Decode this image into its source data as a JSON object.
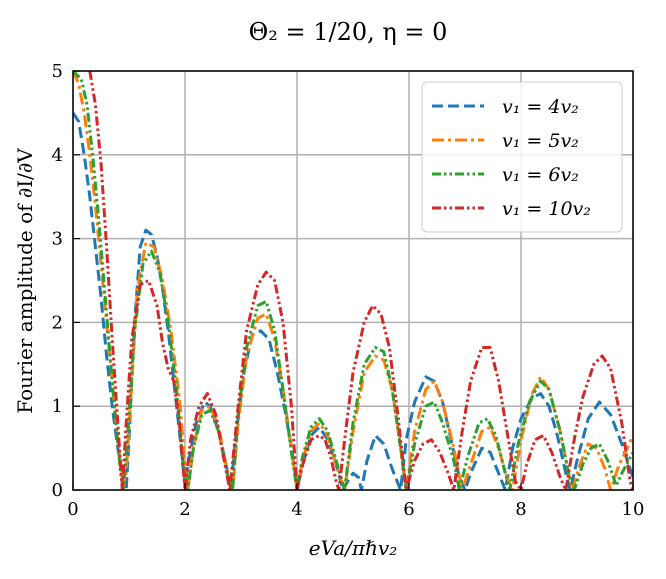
{
  "chart_data": {
    "type": "line",
    "title": "Θ₂ = 1/20, η = 0",
    "xlabel": "eVa/πℏv₂",
    "ylabel": "Fourier amplitude of ∂I/∂V",
    "xlim": [
      0,
      10
    ],
    "ylim": [
      0,
      5
    ],
    "xticks": [
      "0",
      "2",
      "4",
      "6",
      "8",
      "10"
    ],
    "yticks": [
      "0",
      "1",
      "2",
      "3",
      "4",
      "5"
    ],
    "grid": true,
    "legend_position": "top-right",
    "series": [
      {
        "name": "v₁ = 4v₂",
        "color": "#1f77b4",
        "dash": "dashed",
        "points": [
          [
            0,
            4.5
          ],
          [
            0.1,
            4.4
          ],
          [
            0.2,
            4.0
          ],
          [
            0.3,
            3.5
          ],
          [
            0.4,
            2.9
          ],
          [
            0.5,
            2.3
          ],
          [
            0.6,
            1.6
          ],
          [
            0.7,
            1.0
          ],
          [
            0.8,
            0.5
          ],
          [
            0.9,
            0.1
          ],
          [
            0.95,
            0.0
          ],
          [
            1.0,
            0.6
          ],
          [
            1.1,
            2.0
          ],
          [
            1.2,
            2.9
          ],
          [
            1.3,
            3.1
          ],
          [
            1.4,
            3.05
          ],
          [
            1.5,
            2.8
          ],
          [
            1.6,
            2.4
          ],
          [
            1.7,
            1.9
          ],
          [
            1.8,
            1.3
          ],
          [
            1.9,
            0.7
          ],
          [
            2.0,
            0.05
          ],
          [
            2.05,
            0.3
          ],
          [
            2.2,
            0.8
          ],
          [
            2.35,
            1.05
          ],
          [
            2.45,
            1.0
          ],
          [
            2.6,
            0.7
          ],
          [
            2.75,
            0.25
          ],
          [
            2.82,
            0.0
          ],
          [
            2.9,
            0.6
          ],
          [
            3.05,
            1.4
          ],
          [
            3.2,
            1.85
          ],
          [
            3.35,
            1.9
          ],
          [
            3.5,
            1.8
          ],
          [
            3.65,
            1.4
          ],
          [
            3.8,
            0.9
          ],
          [
            3.95,
            0.3
          ],
          [
            4.0,
            0.0
          ],
          [
            4.1,
            0.3
          ],
          [
            4.25,
            0.65
          ],
          [
            4.4,
            0.75
          ],
          [
            4.55,
            0.6
          ],
          [
            4.7,
            0.3
          ],
          [
            4.82,
            0.0
          ],
          [
            4.9,
            0.1
          ],
          [
            5.0,
            0.2
          ],
          [
            5.1,
            0.15
          ],
          [
            5.15,
            0.0
          ],
          [
            5.25,
            0.35
          ],
          [
            5.4,
            0.65
          ],
          [
            5.55,
            0.55
          ],
          [
            5.7,
            0.25
          ],
          [
            5.85,
            0.0
          ],
          [
            5.95,
            0.6
          ],
          [
            6.1,
            1.05
          ],
          [
            6.3,
            1.35
          ],
          [
            6.45,
            1.3
          ],
          [
            6.6,
            1.05
          ],
          [
            6.75,
            0.6
          ],
          [
            6.9,
            0.15
          ],
          [
            7.0,
            0.0
          ],
          [
            7.1,
            0.2
          ],
          [
            7.3,
            0.5
          ],
          [
            7.45,
            0.45
          ],
          [
            7.6,
            0.2
          ],
          [
            7.72,
            0.0
          ],
          [
            7.85,
            0.5
          ],
          [
            8.0,
            0.85
          ],
          [
            8.2,
            1.1
          ],
          [
            8.35,
            1.15
          ],
          [
            8.5,
            1.0
          ],
          [
            8.65,
            0.65
          ],
          [
            8.8,
            0.2
          ],
          [
            8.88,
            0.0
          ],
          [
            9.0,
            0.35
          ],
          [
            9.2,
            0.85
          ],
          [
            9.4,
            1.05
          ],
          [
            9.6,
            0.9
          ],
          [
            9.8,
            0.55
          ],
          [
            10.0,
            0.15
          ]
        ]
      },
      {
        "name": "v₁ = 5v₂",
        "color": "#ff7f0e",
        "dash": "dash-dot",
        "points": [
          [
            0,
            5.0
          ],
          [
            0.1,
            4.85
          ],
          [
            0.2,
            4.5
          ],
          [
            0.3,
            4.0
          ],
          [
            0.4,
            3.4
          ],
          [
            0.5,
            2.7
          ],
          [
            0.6,
            2.0
          ],
          [
            0.7,
            1.3
          ],
          [
            0.8,
            0.6
          ],
          [
            0.9,
            0.05
          ],
          [
            0.95,
            0.2
          ],
          [
            1.05,
            1.3
          ],
          [
            1.15,
            2.4
          ],
          [
            1.3,
            2.95
          ],
          [
            1.45,
            2.9
          ],
          [
            1.6,
            2.5
          ],
          [
            1.75,
            1.9
          ],
          [
            1.9,
            1.1
          ],
          [
            2.0,
            0.3
          ],
          [
            2.05,
            0.0
          ],
          [
            2.15,
            0.5
          ],
          [
            2.3,
            0.95
          ],
          [
            2.45,
            1.0
          ],
          [
            2.6,
            0.75
          ],
          [
            2.75,
            0.25
          ],
          [
            2.85,
            0.0
          ],
          [
            2.95,
            0.8
          ],
          [
            3.1,
            1.6
          ],
          [
            3.3,
            2.05
          ],
          [
            3.45,
            2.1
          ],
          [
            3.6,
            1.8
          ],
          [
            3.75,
            1.2
          ],
          [
            3.9,
            0.5
          ],
          [
            4.0,
            0.0
          ],
          [
            4.1,
            0.35
          ],
          [
            4.25,
            0.7
          ],
          [
            4.4,
            0.8
          ],
          [
            4.55,
            0.65
          ],
          [
            4.7,
            0.3
          ],
          [
            4.85,
            0.0
          ],
          [
            5.0,
            0.7
          ],
          [
            5.2,
            1.4
          ],
          [
            5.4,
            1.6
          ],
          [
            5.55,
            1.55
          ],
          [
            5.7,
            1.2
          ],
          [
            5.85,
            0.5
          ],
          [
            5.95,
            0.0
          ],
          [
            6.1,
            0.7
          ],
          [
            6.3,
            1.2
          ],
          [
            6.45,
            1.3
          ],
          [
            6.6,
            1.05
          ],
          [
            6.8,
            0.5
          ],
          [
            6.95,
            0.0
          ],
          [
            7.1,
            0.3
          ],
          [
            7.3,
            0.7
          ],
          [
            7.45,
            0.75
          ],
          [
            7.6,
            0.5
          ],
          [
            7.75,
            0.15
          ],
          [
            7.85,
            0.0
          ],
          [
            8.0,
            0.6
          ],
          [
            8.2,
            1.15
          ],
          [
            8.35,
            1.35
          ],
          [
            8.5,
            1.2
          ],
          [
            8.7,
            0.7
          ],
          [
            8.85,
            0.2
          ],
          [
            8.92,
            0.0
          ],
          [
            9.05,
            0.3
          ],
          [
            9.2,
            0.55
          ],
          [
            9.35,
            0.5
          ],
          [
            9.5,
            0.25
          ],
          [
            9.6,
            0.0
          ],
          [
            9.75,
            0.3
          ],
          [
            9.9,
            0.5
          ],
          [
            10.0,
            0.65
          ]
        ]
      },
      {
        "name": "v₁ = 6v₂",
        "color": "#2ca02c",
        "dash": "dash-dot-dot",
        "points": [
          [
            0,
            5.0
          ],
          [
            0.15,
            4.9
          ],
          [
            0.25,
            4.6
          ],
          [
            0.35,
            4.0
          ],
          [
            0.45,
            3.3
          ],
          [
            0.55,
            2.5
          ],
          [
            0.65,
            1.7
          ],
          [
            0.75,
            0.9
          ],
          [
            0.85,
            0.2
          ],
          [
            0.9,
            0.0
          ],
          [
            1.0,
            0.9
          ],
          [
            1.1,
            1.9
          ],
          [
            1.25,
            2.7
          ],
          [
            1.4,
            2.85
          ],
          [
            1.55,
            2.6
          ],
          [
            1.7,
            2.0
          ],
          [
            1.85,
            1.2
          ],
          [
            1.95,
            0.4
          ],
          [
            2.05,
            0.0
          ],
          [
            2.15,
            0.5
          ],
          [
            2.3,
            0.9
          ],
          [
            2.45,
            0.95
          ],
          [
            2.6,
            0.7
          ],
          [
            2.75,
            0.2
          ],
          [
            2.85,
            0.0
          ],
          [
            2.95,
            0.9
          ],
          [
            3.1,
            1.7
          ],
          [
            3.3,
            2.2
          ],
          [
            3.45,
            2.25
          ],
          [
            3.6,
            1.9
          ],
          [
            3.75,
            1.2
          ],
          [
            3.9,
            0.45
          ],
          [
            4.0,
            0.0
          ],
          [
            4.1,
            0.4
          ],
          [
            4.25,
            0.75
          ],
          [
            4.4,
            0.85
          ],
          [
            4.55,
            0.7
          ],
          [
            4.7,
            0.35
          ],
          [
            4.85,
            0.0
          ],
          [
            5.0,
            0.8
          ],
          [
            5.2,
            1.5
          ],
          [
            5.4,
            1.7
          ],
          [
            5.55,
            1.65
          ],
          [
            5.7,
            1.2
          ],
          [
            5.85,
            0.5
          ],
          [
            5.95,
            0.0
          ],
          [
            6.1,
            0.55
          ],
          [
            6.3,
            1.0
          ],
          [
            6.45,
            1.05
          ],
          [
            6.6,
            0.8
          ],
          [
            6.8,
            0.35
          ],
          [
            6.9,
            0.0
          ],
          [
            7.05,
            0.4
          ],
          [
            7.25,
            0.8
          ],
          [
            7.4,
            0.85
          ],
          [
            7.55,
            0.65
          ],
          [
            7.7,
            0.25
          ],
          [
            7.8,
            0.0
          ],
          [
            7.95,
            0.55
          ],
          [
            8.15,
            1.05
          ],
          [
            8.35,
            1.3
          ],
          [
            8.5,
            1.2
          ],
          [
            8.7,
            0.7
          ],
          [
            8.85,
            0.2
          ],
          [
            8.95,
            0.0
          ],
          [
            9.1,
            0.3
          ],
          [
            9.25,
            0.5
          ],
          [
            9.4,
            0.55
          ],
          [
            9.55,
            0.35
          ],
          [
            9.7,
            0.05
          ],
          [
            9.8,
            0.2
          ],
          [
            10.0,
            0.45
          ]
        ]
      },
      {
        "name": "v₁ = 10v₂",
        "color": "#d62728",
        "dash": "dash-dot-dot",
        "points": [
          [
            0.3,
            5.0
          ],
          [
            0.4,
            4.6
          ],
          [
            0.5,
            3.9
          ],
          [
            0.6,
            2.9
          ],
          [
            0.7,
            1.8
          ],
          [
            0.8,
            0.8
          ],
          [
            0.88,
            0.0
          ],
          [
            0.95,
            0.8
          ],
          [
            1.05,
            1.8
          ],
          [
            1.2,
            2.45
          ],
          [
            1.35,
            2.5
          ],
          [
            1.5,
            2.2
          ],
          [
            1.6,
            1.75
          ],
          [
            1.7,
            1.45
          ],
          [
            1.8,
            1.3
          ],
          [
            1.9,
            0.8
          ],
          [
            2.0,
            0.0
          ],
          [
            2.1,
            0.6
          ],
          [
            2.25,
            1.0
          ],
          [
            2.4,
            1.15
          ],
          [
            2.55,
            0.9
          ],
          [
            2.7,
            0.35
          ],
          [
            2.8,
            0.0
          ],
          [
            2.95,
            1.0
          ],
          [
            3.1,
            1.9
          ],
          [
            3.3,
            2.45
          ],
          [
            3.45,
            2.6
          ],
          [
            3.6,
            2.5
          ],
          [
            3.75,
            2.0
          ],
          [
            3.9,
            1.0
          ],
          [
            4.0,
            0.0
          ],
          [
            4.1,
            0.3
          ],
          [
            4.25,
            0.6
          ],
          [
            4.4,
            0.65
          ],
          [
            4.5,
            0.6
          ],
          [
            4.6,
            0.4
          ],
          [
            4.7,
            0.1
          ],
          [
            4.75,
            0.0
          ],
          [
            4.85,
            0.6
          ],
          [
            5.0,
            1.4
          ],
          [
            5.2,
            2.0
          ],
          [
            5.35,
            2.2
          ],
          [
            5.5,
            2.1
          ],
          [
            5.65,
            1.7
          ],
          [
            5.8,
            0.9
          ],
          [
            5.95,
            0.0
          ],
          [
            6.1,
            0.35
          ],
          [
            6.25,
            0.55
          ],
          [
            6.4,
            0.6
          ],
          [
            6.55,
            0.45
          ],
          [
            6.7,
            0.2
          ],
          [
            6.8,
            0.0
          ],
          [
            6.95,
            0.7
          ],
          [
            7.1,
            1.3
          ],
          [
            7.3,
            1.7
          ],
          [
            7.45,
            1.7
          ],
          [
            7.6,
            1.3
          ],
          [
            7.75,
            0.7
          ],
          [
            7.9,
            0.1
          ],
          [
            8.0,
            0.0
          ],
          [
            8.1,
            0.3
          ],
          [
            8.25,
            0.6
          ],
          [
            8.4,
            0.65
          ],
          [
            8.55,
            0.45
          ],
          [
            8.7,
            0.15
          ],
          [
            8.8,
            0.0
          ],
          [
            8.95,
            0.6
          ],
          [
            9.1,
            1.1
          ],
          [
            9.3,
            1.5
          ],
          [
            9.45,
            1.6
          ],
          [
            9.6,
            1.45
          ],
          [
            9.8,
            0.8
          ],
          [
            9.95,
            0.1
          ],
          [
            10.0,
            0.0
          ]
        ]
      }
    ]
  }
}
